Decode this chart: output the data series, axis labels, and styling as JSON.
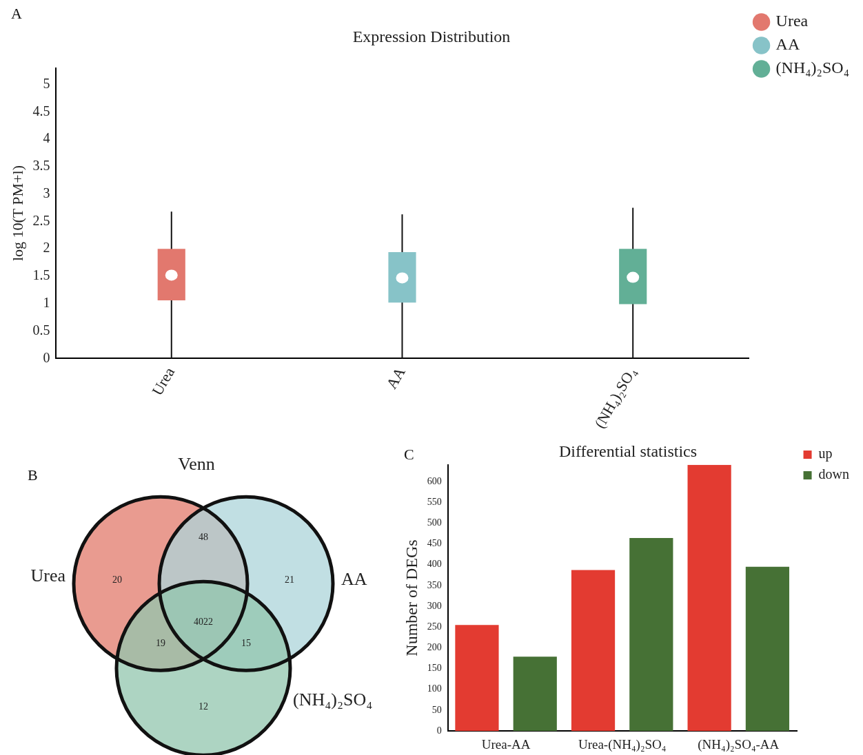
{
  "chart_data": [
    {
      "type": "box",
      "title": "Expression Distribution",
      "ylabel": "log 10(T PM+l)",
      "annotations": [
        "A"
      ],
      "categories": [
        "Urea",
        "AA",
        "(NH₄)₂SO₄"
      ],
      "series": [
        {
          "name": "Urea",
          "color": "#e2786e",
          "boxes": [
            {
              "low": 0,
              "q1": 1.06,
              "median": 1.52,
              "q3": 2.0,
              "high": 2.68
            },
            null,
            null
          ]
        },
        {
          "name": "AA",
          "color": "#87c3c8",
          "boxes": [
            null,
            {
              "low": 0,
              "q1": 1.02,
              "median": 1.47,
              "q3": 1.94,
              "high": 2.63
            },
            null
          ]
        },
        {
          "name": "(NH₄)₂SO₄",
          "color": "#62af96",
          "boxes": [
            null,
            null,
            {
              "low": 0,
              "q1": 0.99,
              "median": 1.48,
              "q3": 2.0,
              "high": 2.75
            }
          ]
        }
      ],
      "ylim": [
        0,
        5.3
      ],
      "yticks": [
        0,
        0.5,
        1,
        1.5,
        2,
        2.5,
        3,
        3.5,
        4,
        4.5,
        5
      ],
      "legend": "top right",
      "grid": false
    },
    {
      "type": "other",
      "title": "Venn",
      "annotations": [
        "B",
        "20",
        "21",
        "12",
        "48",
        "19",
        "15",
        "4022"
      ],
      "categories": [
        "Urea",
        "AA",
        "(NH₄)₂SO₄"
      ],
      "colors": [
        "#e99b90",
        "#acd4d9",
        "#92c5ae"
      ]
    },
    {
      "type": "bar",
      "title": "Differential statistics",
      "ylabel": "Number of DEGs",
      "annotations": [
        "C"
      ],
      "categories": [
        "Urea-AA",
        "Urea-(NH₄)₂SO₄",
        "(NH₄)₂SO₄-AA"
      ],
      "series": [
        {
          "name": "up",
          "color": "#e33b31",
          "values": [
            255,
            387,
            640
          ]
        },
        {
          "name": "down",
          "color": "#467135",
          "values": [
            179,
            464,
            395
          ]
        }
      ],
      "ylim": [
        0,
        640
      ],
      "yticks": [
        0,
        50,
        100,
        150,
        200,
        250,
        300,
        350,
        400,
        450,
        500,
        550,
        600
      ],
      "legend": "top right",
      "grid": false
    }
  ]
}
